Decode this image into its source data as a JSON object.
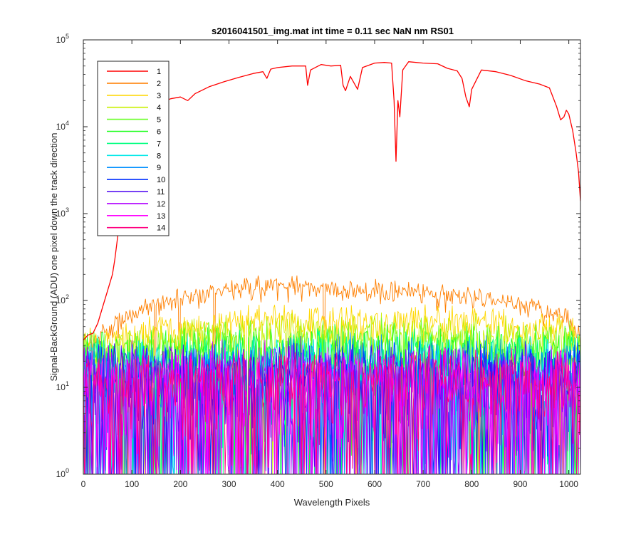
{
  "chart_data": {
    "type": "line",
    "title": "s2016041501_img.mat int time = 0.11 sec  NaN nm RS01",
    "xlabel": "Wavelength Pixels",
    "ylabel": "Signal-BackGround (ADU) one pixel down the track direction",
    "x_range": [
      0,
      1024
    ],
    "y_range": [
      1,
      100000
    ],
    "y_scale": "log",
    "grid": false,
    "legend_position": "top-left",
    "x_ticks": [
      "0",
      "100",
      "200",
      "300",
      "400",
      "500",
      "600",
      "700",
      "800",
      "900",
      "1000"
    ],
    "x_tick_values": [
      0,
      100,
      200,
      300,
      400,
      500,
      600,
      700,
      800,
      900,
      1000
    ],
    "y_ticks": [
      {
        "base": "10",
        "exp": "0",
        "value": 1
      },
      {
        "base": "10",
        "exp": "1",
        "value": 10
      },
      {
        "base": "10",
        "exp": "2",
        "value": 100
      },
      {
        "base": "10",
        "exp": "3",
        "value": 1000
      },
      {
        "base": "10",
        "exp": "4",
        "value": 10000
      },
      {
        "base": "10",
        "exp": "5",
        "value": 100000
      }
    ],
    "series": [
      {
        "name": "1",
        "color": "#ff0000",
        "noisy": false,
        "points": [
          [
            0,
            35
          ],
          [
            10,
            40
          ],
          [
            20,
            42
          ],
          [
            30,
            55
          ],
          [
            40,
            85
          ],
          [
            50,
            130
          ],
          [
            60,
            200
          ],
          [
            65,
            300
          ],
          [
            70,
            500
          ],
          [
            75,
            800
          ],
          [
            80,
            1300
          ],
          [
            90,
            2500
          ],
          [
            100,
            4500
          ],
          [
            110,
            7000
          ],
          [
            120,
            10000
          ],
          [
            130,
            13000
          ],
          [
            140,
            16000
          ],
          [
            160,
            19000
          ],
          [
            180,
            21000
          ],
          [
            200,
            22000
          ],
          [
            215,
            20000
          ],
          [
            230,
            24000
          ],
          [
            260,
            29000
          ],
          [
            290,
            33000
          ],
          [
            320,
            37000
          ],
          [
            350,
            41000
          ],
          [
            370,
            43000
          ],
          [
            378,
            36000
          ],
          [
            386,
            46000
          ],
          [
            400,
            48000
          ],
          [
            430,
            50000
          ],
          [
            458,
            50000
          ],
          [
            462,
            30000
          ],
          [
            468,
            45000
          ],
          [
            490,
            52000
          ],
          [
            510,
            50000
          ],
          [
            530,
            51000
          ],
          [
            535,
            30000
          ],
          [
            540,
            26000
          ],
          [
            550,
            38000
          ],
          [
            565,
            27000
          ],
          [
            575,
            48000
          ],
          [
            600,
            54000
          ],
          [
            620,
            55000
          ],
          [
            635,
            54000
          ],
          [
            640,
            20000
          ],
          [
            644,
            4000
          ],
          [
            648,
            20000
          ],
          [
            652,
            13000
          ],
          [
            658,
            45000
          ],
          [
            670,
            56000
          ],
          [
            700,
            54000
          ],
          [
            730,
            53000
          ],
          [
            750,
            47000
          ],
          [
            770,
            44000
          ],
          [
            780,
            36000
          ],
          [
            788,
            22000
          ],
          [
            795,
            17000
          ],
          [
            800,
            27000
          ],
          [
            820,
            45000
          ],
          [
            850,
            43000
          ],
          [
            880,
            39000
          ],
          [
            910,
            34000
          ],
          [
            940,
            31000
          ],
          [
            960,
            28000
          ],
          [
            975,
            17000
          ],
          [
            983,
            12000
          ],
          [
            990,
            13000
          ],
          [
            995,
            15500
          ],
          [
            1000,
            14000
          ],
          [
            1008,
            9000
          ],
          [
            1015,
            5000
          ],
          [
            1020,
            3000
          ],
          [
            1024,
            1400
          ]
        ]
      },
      {
        "name": "2",
        "color": "#ff7f00",
        "noisy": true,
        "profile": [
          [
            0,
            25
          ],
          [
            100,
            70
          ],
          [
            200,
            110
          ],
          [
            300,
            130
          ],
          [
            400,
            145
          ],
          [
            500,
            140
          ],
          [
            600,
            130
          ],
          [
            700,
            120
          ],
          [
            800,
            110
          ],
          [
            900,
            90
          ],
          [
            1000,
            60
          ],
          [
            1024,
            35
          ]
        ],
        "spread": 0.15
      },
      {
        "name": "3",
        "color": "#ffd700",
        "noisy": true,
        "profile": [
          [
            0,
            30
          ],
          [
            200,
            50
          ],
          [
            400,
            60
          ],
          [
            600,
            58
          ],
          [
            800,
            55
          ],
          [
            1000,
            45
          ],
          [
            1024,
            35
          ]
        ],
        "spread": 0.25
      },
      {
        "name": "4",
        "color": "#c8f000",
        "noisy": true,
        "profile": [
          [
            0,
            25
          ],
          [
            200,
            38
          ],
          [
            400,
            42
          ],
          [
            600,
            42
          ],
          [
            800,
            40
          ],
          [
            1000,
            36
          ],
          [
            1024,
            30
          ]
        ],
        "spread": 0.3
      },
      {
        "name": "5",
        "color": "#6eff2c",
        "noisy": true,
        "profile": [
          [
            0,
            22
          ],
          [
            300,
            30
          ],
          [
            700,
            30
          ],
          [
            1024,
            25
          ]
        ],
        "spread": 0.45
      },
      {
        "name": "6",
        "color": "#22ff22",
        "noisy": true,
        "profile": [
          [
            0,
            20
          ],
          [
            500,
            25
          ],
          [
            1024,
            22
          ]
        ],
        "spread": 0.55
      },
      {
        "name": "7",
        "color": "#00ff80",
        "noisy": true,
        "profile": [
          [
            0,
            16
          ],
          [
            500,
            20
          ],
          [
            1024,
            18
          ]
        ],
        "spread": 0.6
      },
      {
        "name": "8",
        "color": "#00e8e8",
        "noisy": true,
        "profile": [
          [
            0,
            14
          ],
          [
            500,
            17
          ],
          [
            1024,
            16
          ]
        ],
        "spread": 0.65
      },
      {
        "name": "9",
        "color": "#0090ff",
        "noisy": true,
        "profile": [
          [
            0,
            13
          ],
          [
            500,
            15
          ],
          [
            1024,
            14
          ]
        ],
        "spread": 0.7
      },
      {
        "name": "10",
        "color": "#0030ff",
        "noisy": true,
        "profile": [
          [
            0,
            12
          ],
          [
            500,
            14
          ],
          [
            1024,
            13
          ]
        ],
        "spread": 0.7
      },
      {
        "name": "11",
        "color": "#4a00f0",
        "noisy": true,
        "profile": [
          [
            0,
            12
          ],
          [
            500,
            13
          ],
          [
            1024,
            12
          ]
        ],
        "spread": 0.75
      },
      {
        "name": "12",
        "color": "#b000ff",
        "noisy": true,
        "profile": [
          [
            0,
            11
          ],
          [
            500,
            12
          ],
          [
            1024,
            11
          ]
        ],
        "spread": 0.75
      },
      {
        "name": "13",
        "color": "#ff00ff",
        "noisy": true,
        "profile": [
          [
            0,
            11
          ],
          [
            500,
            12
          ],
          [
            1024,
            11
          ]
        ],
        "spread": 0.7
      },
      {
        "name": "14",
        "color": "#ff0080",
        "noisy": true,
        "profile": [
          [
            0,
            11
          ],
          [
            500,
            12
          ],
          [
            1024,
            11
          ]
        ],
        "spread": 0.6
      }
    ]
  }
}
